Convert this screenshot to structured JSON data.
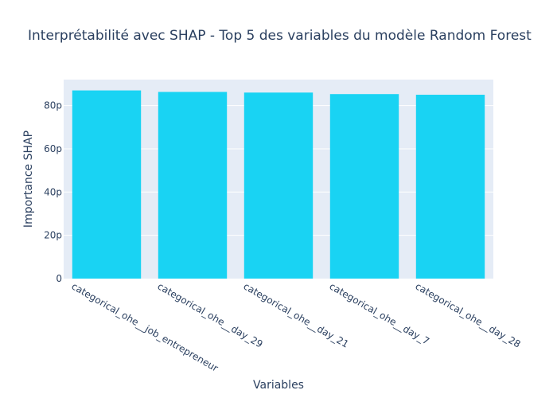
{
  "chart_data": {
    "type": "bar",
    "title": "Interprétabilité avec SHAP - Top 5 des variables du modèle Random Forest",
    "xlabel": "Variables",
    "ylabel": "Importance SHAP",
    "categories": [
      "categorical_ohe__job_entrepreneur",
      "categorical_ohe__day_29",
      "categorical_ohe__day_21",
      "categorical_ohe__day_7",
      "categorical_ohe__day_28"
    ],
    "values": [
      8.7e-11,
      8.63e-11,
      8.6e-11,
      8.53e-11,
      8.5e-11
    ],
    "ylim": [
      0,
      9.2e-11
    ],
    "yticks": [
      0,
      2e-11,
      4e-11,
      6e-11,
      8e-11
    ],
    "ytick_labels": [
      "0",
      "20p",
      "40p",
      "60p",
      "80p"
    ],
    "bar_color": "#19d3f3",
    "plot_background": "#e5ecf6",
    "grid": true
  }
}
